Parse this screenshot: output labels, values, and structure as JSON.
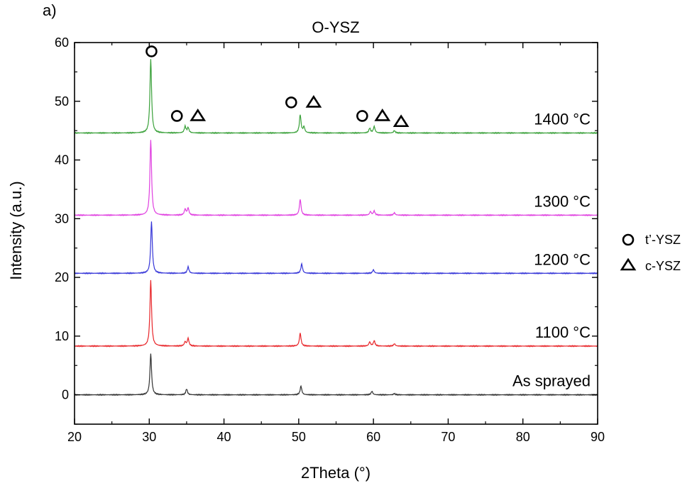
{
  "chart_data": {
    "type": "line",
    "panel_label": "a)",
    "title": "O-YSZ",
    "xlabel": "2Theta (°)",
    "ylabel": "Intensity (a.u.)",
    "xlim": [
      20,
      90
    ],
    "ylim": [
      -5,
      60
    ],
    "xticks": [
      "20",
      "30",
      "40",
      "50",
      "60",
      "70",
      "80",
      "90"
    ],
    "yticks": [
      "0",
      "10",
      "20",
      "30",
      "40",
      "50",
      "60"
    ],
    "grid": false,
    "legend": {
      "placement": "right",
      "entries": [
        {
          "marker": "circle-icon",
          "label": "t’-YSZ"
        },
        {
          "marker": "triangle-icon",
          "label": "c-YSZ"
        }
      ]
    },
    "series": [
      {
        "name": "As sprayed",
        "color": "#333333",
        "baseline": 0,
        "peaks": [
          [
            30.2,
            7
          ],
          [
            35.0,
            1.0
          ],
          [
            50.3,
            1.5
          ],
          [
            59.8,
            0.6
          ],
          [
            62.8,
            0.2
          ]
        ]
      },
      {
        "name": "1100 °C",
        "color": "#e8262a",
        "baseline": 8.3,
        "peaks": [
          [
            30.2,
            19.5
          ],
          [
            34.8,
            9.0
          ],
          [
            35.2,
            9.6
          ],
          [
            50.2,
            10.5
          ],
          [
            59.5,
            9.0
          ],
          [
            60.1,
            9.2
          ],
          [
            62.8,
            8.7
          ]
        ]
      },
      {
        "name": "1200 °C",
        "color": "#3535d8",
        "baseline": 20.7,
        "peaks": [
          [
            30.3,
            29.5
          ],
          [
            35.2,
            21.8
          ],
          [
            50.4,
            22.3
          ],
          [
            60.0,
            21.3
          ]
        ]
      },
      {
        "name": "1300 °C",
        "color": "#e040e0",
        "baseline": 30.6,
        "peaks": [
          [
            30.2,
            43.5
          ],
          [
            34.8,
            31.6
          ],
          [
            35.2,
            31.8
          ],
          [
            50.2,
            33.3
          ],
          [
            59.6,
            31.2
          ],
          [
            60.1,
            31.3
          ],
          [
            62.8,
            31.0
          ]
        ]
      },
      {
        "name": "1400 °C",
        "color": "#3aa13a",
        "baseline": 44.6,
        "peaks": [
          [
            30.2,
            57.2
          ],
          [
            34.8,
            45.7
          ],
          [
            35.2,
            45.5
          ],
          [
            50.2,
            47.7
          ],
          [
            50.7,
            45.6
          ],
          [
            59.5,
            45.4
          ],
          [
            60.1,
            45.7
          ],
          [
            62.8,
            45.0
          ]
        ]
      }
    ],
    "phase_markers": [
      {
        "phase": "t’-YSZ",
        "shape": "circle",
        "x": 30.3,
        "y": 58.5
      },
      {
        "phase": "t’-YSZ",
        "shape": "circle",
        "x": 33.7,
        "y": 47.5
      },
      {
        "phase": "c-YSZ",
        "shape": "triangle",
        "x": 36.5,
        "y": 47.5
      },
      {
        "phase": "t’-YSZ",
        "shape": "circle",
        "x": 49.0,
        "y": 49.8
      },
      {
        "phase": "c-YSZ",
        "shape": "triangle",
        "x": 52.0,
        "y": 49.8
      },
      {
        "phase": "t’-YSZ",
        "shape": "circle",
        "x": 58.5,
        "y": 47.5
      },
      {
        "phase": "c-YSZ",
        "shape": "triangle",
        "x": 61.2,
        "y": 47.5
      },
      {
        "phase": "c-YSZ",
        "shape": "triangle",
        "x": 63.7,
        "y": 46.5
      }
    ]
  }
}
